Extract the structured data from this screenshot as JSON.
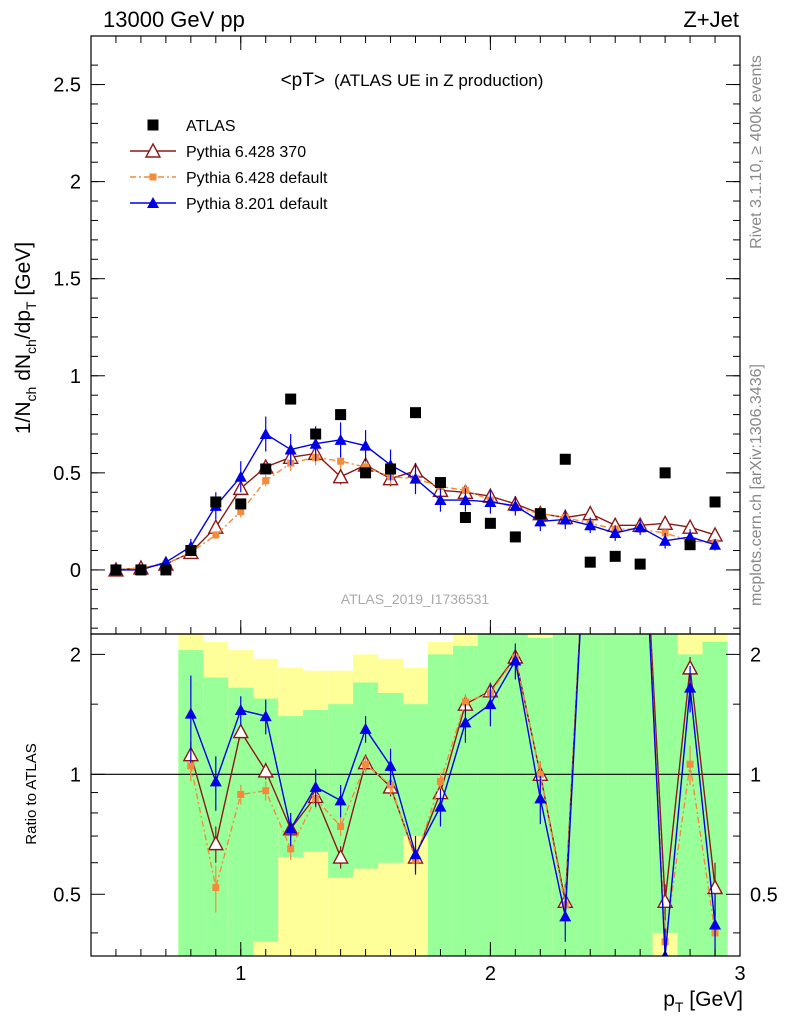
{
  "header": {
    "left": "13000 GeV pp",
    "right": "Z+Jet"
  },
  "side_labels": {
    "rivet": "Rivet 3.1.10, ≥ 400k events",
    "mcplots": "mcplots.cern.ch [arXiv:1306.3436]"
  },
  "watermark": "ATLAS_2019_I1736531",
  "title": {
    "main": "<pT>",
    "sub": "(ATLAS UE in Z production)"
  },
  "axes": {
    "ylabel": {
      "base": "1/N",
      "s1": "ch",
      "mid": " dN",
      "s2": "ch",
      "mid2": "/dp",
      "s3": "T",
      "unit": " [GeV]"
    },
    "ratio_ylabel": "Ratio to ATLAS",
    "xlabel": {
      "base": "p",
      "sub": "T",
      "unit": " [GeV]"
    },
    "xlim": [
      0.4,
      3.0
    ],
    "ylim_main": [
      -0.33,
      2.75
    ],
    "ylim_ratio": [
      0.35,
      2.25
    ],
    "x_ticks": [
      1,
      2,
      3
    ],
    "y_ticks_main": [
      0,
      0.5,
      1,
      1.5,
      2,
      2.5
    ],
    "y_ticks_ratio": [
      0.5,
      1,
      2
    ],
    "ratio_scale": "log"
  },
  "legend": {
    "placement": "top-left",
    "entries": [
      {
        "key": "atlas",
        "label": "ATLAS"
      },
      {
        "key": "p6_370",
        "label": "Pythia 6.428 370"
      },
      {
        "key": "p6_def",
        "label": "Pythia 6.428 default"
      },
      {
        "key": "p8_def",
        "label": "Pythia 8.201 default"
      }
    ]
  },
  "colors": {
    "atlas": "#000000",
    "p6_370": "#8b1a1a",
    "p6_def": "#f28c3c",
    "p8_def": "#0000e6",
    "band_green": "#99ff99",
    "band_yellow": "#ffff99"
  },
  "chart_data": {
    "type": "scatter",
    "x": [
      0.5,
      0.6,
      0.7,
      0.8,
      0.9,
      1.0,
      1.1,
      1.2,
      1.3,
      1.4,
      1.5,
      1.6,
      1.7,
      1.8,
      1.9,
      2.0,
      2.1,
      2.2,
      2.3,
      2.4,
      2.5,
      2.6,
      2.7,
      2.8,
      2.9
    ],
    "series": [
      {
        "key": "atlas",
        "name": "ATLAS",
        "values": [
          0.0,
          0.0,
          0.0,
          0.1,
          0.35,
          0.34,
          0.52,
          0.88,
          0.7,
          0.8,
          0.5,
          0.52,
          0.81,
          0.45,
          0.27,
          0.24,
          0.17,
          0.29,
          0.57,
          0.04,
          0.07,
          0.03,
          0.5,
          0.13,
          0.35
        ]
      },
      {
        "key": "p6_370",
        "name": "Pythia 6.428 370",
        "values": [
          0.0,
          0.01,
          0.03,
          0.09,
          0.22,
          0.42,
          0.53,
          0.58,
          0.6,
          0.48,
          0.54,
          0.47,
          0.51,
          0.41,
          0.4,
          0.38,
          0.34,
          0.29,
          0.27,
          0.29,
          0.23,
          0.23,
          0.24,
          0.22,
          0.18
        ]
      },
      {
        "key": "p6_def",
        "name": "Pythia 6.428 default",
        "values": [
          0.0,
          0.01,
          0.03,
          0.09,
          0.18,
          0.3,
          0.46,
          0.55,
          0.58,
          0.56,
          0.53,
          0.48,
          0.47,
          0.43,
          0.41,
          0.36,
          0.32,
          0.29,
          0.27,
          0.24,
          0.21,
          0.21,
          0.19,
          0.15,
          0.14
        ]
      },
      {
        "key": "p8_def",
        "name": "Pythia 8.201 default",
        "values": [
          0.0,
          0.0,
          0.04,
          0.12,
          0.33,
          0.48,
          0.7,
          0.62,
          0.65,
          0.67,
          0.64,
          0.54,
          0.47,
          0.36,
          0.36,
          0.35,
          0.33,
          0.25,
          0.26,
          0.23,
          0.19,
          0.22,
          0.15,
          0.17,
          0.13
        ]
      }
    ],
    "errors": {
      "p8_def": [
        0.02,
        0.02,
        0.02,
        0.04,
        0.07,
        0.08,
        0.09,
        0.08,
        0.09,
        0.09,
        0.08,
        0.08,
        0.08,
        0.06,
        0.06,
        0.06,
        0.05,
        0.05,
        0.05,
        0.04,
        0.04,
        0.04,
        0.04,
        0.04,
        0.03
      ],
      "p6_def": [
        0.01,
        0.01,
        0.01,
        0.02,
        0.02,
        0.03,
        0.03,
        0.04,
        0.04,
        0.04,
        0.04,
        0.04,
        0.04,
        0.03,
        0.03,
        0.03,
        0.03,
        0.03,
        0.03,
        0.03,
        0.02,
        0.02,
        0.02,
        0.02,
        0.02
      ],
      "p6_370": [
        0.01,
        0.01,
        0.01,
        0.02,
        0.02,
        0.03,
        0.03,
        0.04,
        0.04,
        0.04,
        0.04,
        0.04,
        0.04,
        0.03,
        0.03,
        0.03,
        0.03,
        0.03,
        0.03,
        0.03,
        0.02,
        0.02,
        0.02,
        0.02,
        0.02
      ]
    },
    "ratio": {
      "x": [
        0.8,
        0.9,
        1.0,
        1.1,
        1.2,
        1.3,
        1.4,
        1.5,
        1.6,
        1.7,
        1.8,
        1.9,
        2.0,
        2.1,
        2.2,
        2.3,
        2.4,
        2.5,
        2.6,
        2.7,
        2.8,
        2.9
      ],
      "series": [
        {
          "key": "p6_370",
          "values": [
            1.12,
            0.67,
            1.28,
            1.02,
            0.73,
            0.88,
            0.62,
            1.07,
            0.93,
            0.62,
            0.9,
            1.5,
            1.62,
            1.97,
            1.0,
            0.48,
            7.0,
            7.0,
            7.0,
            0.48,
            1.85,
            0.52
          ]
        },
        {
          "key": "p6_def",
          "values": [
            1.05,
            0.52,
            0.89,
            0.91,
            0.65,
            0.87,
            0.74,
            1.06,
            0.94,
            0.61,
            0.96,
            1.52,
            1.6,
            1.96,
            1.0,
            0.47,
            7.0,
            7.0,
            7.0,
            0.38,
            1.06,
            0.4
          ]
        },
        {
          "key": "p8_def",
          "values": [
            1.42,
            0.96,
            1.45,
            1.4,
            0.73,
            0.93,
            0.86,
            1.3,
            1.05,
            0.63,
            0.83,
            1.35,
            1.5,
            1.93,
            0.87,
            0.44,
            7.0,
            7.0,
            7.0,
            0.35,
            1.65,
            0.42
          ]
        }
      ],
      "errors_p8": [
        0.35,
        0.15,
        0.12,
        0.14,
        0.07,
        0.1,
        0.08,
        0.1,
        0.11,
        0.07,
        0.09,
        0.15,
        0.18,
        0.2,
        0.12,
        0.06,
        0.0,
        0.0,
        0.0,
        0.06,
        0.22,
        0.08
      ],
      "errors_p6": [
        0.09,
        0.07,
        0.05,
        0.05,
        0.04,
        0.05,
        0.04,
        0.05,
        0.05,
        0.04,
        0.05,
        0.07,
        0.08,
        0.1,
        0.08,
        0.05,
        0.0,
        0.0,
        0.0,
        0.05,
        0.12,
        0.08
      ],
      "bands": [
        {
          "x0": 0.75,
          "x1": 0.85,
          "green": [
            0.35,
            2.05
          ],
          "yellow": [
            0.35,
            2.25
          ]
        },
        {
          "x0": 0.85,
          "x1": 0.95,
          "green": [
            0.35,
            1.75
          ],
          "yellow": [
            0.35,
            2.15
          ]
        },
        {
          "x0": 0.95,
          "x1": 1.05,
          "green": [
            0.35,
            1.65
          ],
          "yellow": [
            0.35,
            2.05
          ]
        },
        {
          "x0": 1.05,
          "x1": 1.15,
          "green": [
            0.38,
            1.55
          ],
          "yellow": [
            0.35,
            1.95
          ]
        },
        {
          "x0": 1.15,
          "x1": 1.25,
          "green": [
            0.62,
            1.4
          ],
          "yellow": [
            0.35,
            1.85
          ]
        },
        {
          "x0": 1.25,
          "x1": 1.35,
          "green": [
            0.64,
            1.45
          ],
          "yellow": [
            0.35,
            1.82
          ]
        },
        {
          "x0": 1.35,
          "x1": 1.45,
          "green": [
            0.55,
            1.5
          ],
          "yellow": [
            0.35,
            1.82
          ]
        },
        {
          "x0": 1.45,
          "x1": 1.55,
          "green": [
            0.58,
            1.7
          ],
          "yellow": [
            0.35,
            2.0
          ]
        },
        {
          "x0": 1.55,
          "x1": 1.65,
          "green": [
            0.6,
            1.6
          ],
          "yellow": [
            0.35,
            1.95
          ]
        },
        {
          "x0": 1.65,
          "x1": 1.75,
          "green": [
            0.7,
            1.5
          ],
          "yellow": [
            0.35,
            1.85
          ]
        },
        {
          "x0": 1.75,
          "x1": 1.85,
          "green": [
            0.35,
            2.0
          ],
          "yellow": [
            0.35,
            2.15
          ]
        },
        {
          "x0": 1.85,
          "x1": 1.95,
          "green": [
            0.35,
            2.1
          ],
          "yellow": [
            0.35,
            2.25
          ]
        },
        {
          "x0": 1.95,
          "x1": 2.05,
          "green": [
            0.35,
            2.25
          ],
          "yellow": [
            0.35,
            2.25
          ]
        },
        {
          "x0": 2.05,
          "x1": 2.15,
          "green": [
            0.35,
            2.25
          ],
          "yellow": [
            0.35,
            2.25
          ]
        },
        {
          "x0": 2.15,
          "x1": 2.25,
          "green": [
            0.35,
            2.2
          ],
          "yellow": [
            0.35,
            2.25
          ]
        },
        {
          "x0": 2.25,
          "x1": 2.35,
          "green": [
            0.35,
            2.25
          ],
          "yellow": [
            0.35,
            2.25
          ]
        },
        {
          "x0": 2.35,
          "x1": 2.45,
          "green": [
            0.35,
            2.25
          ],
          "yellow": [
            0.35,
            2.25
          ]
        },
        {
          "x0": 2.45,
          "x1": 2.55,
          "green": [
            0.35,
            2.25
          ],
          "yellow": [
            0.35,
            2.25
          ]
        },
        {
          "x0": 2.55,
          "x1": 2.65,
          "green": [
            0.35,
            2.25
          ],
          "yellow": [
            0.35,
            2.25
          ]
        },
        {
          "x0": 2.65,
          "x1": 2.75,
          "green": [
            0.4,
            2.25
          ],
          "yellow": [
            0.35,
            2.25
          ]
        },
        {
          "x0": 2.75,
          "x1": 2.85,
          "green": [
            0.35,
            2.0
          ],
          "yellow": [
            0.35,
            2.25
          ]
        },
        {
          "x0": 2.85,
          "x1": 2.95,
          "green": [
            0.35,
            2.15
          ],
          "yellow": [
            0.35,
            2.25
          ]
        }
      ]
    }
  }
}
